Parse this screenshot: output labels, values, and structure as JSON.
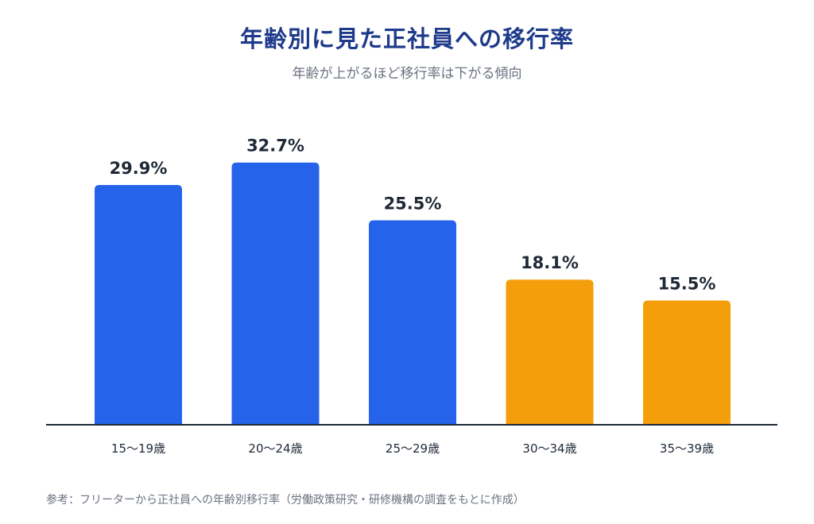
{
  "chart_data": {
    "type": "bar",
    "title": "年齢別に見た正社員への移行率",
    "subtitle": "年齢が上がるほど移行率は下がる傾向",
    "categories": [
      "15〜19歳",
      "20〜24歳",
      "25〜29歳",
      "30〜34歳",
      "35〜39歳"
    ],
    "values": [
      29.9,
      32.7,
      25.5,
      18.1,
      15.5
    ],
    "value_labels": [
      "29.9%",
      "32.7%",
      "25.5%",
      "18.1%",
      "15.5%"
    ],
    "unit": "%",
    "colors": [
      "#2563eb",
      "#2563eb",
      "#2563eb",
      "#f59e0b",
      "#f59e0b"
    ],
    "ylim": [
      0,
      35
    ],
    "grid": false,
    "xlabel": "",
    "ylabel": ""
  },
  "source": "参考：フリーターから正社員への年齢別移行率（労働政策研究・研修機構の調査をもとに作成）"
}
